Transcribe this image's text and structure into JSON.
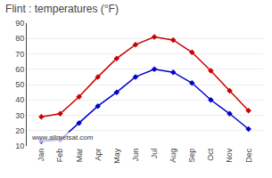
{
  "chart_data": {
    "type": "line",
    "title": "Flint : temperatures (°F)",
    "categories": [
      "Jan",
      "Feb",
      "Mar",
      "Apr",
      "May",
      "Jun",
      "Jul",
      "Aug",
      "Sep",
      "Oct",
      "Nov",
      "Dec"
    ],
    "series": [
      {
        "color": "#cc0000",
        "marker": "diamond",
        "line_style": "solid",
        "values": [
          29,
          31,
          42,
          55,
          67,
          76,
          81,
          79,
          71,
          59,
          46,
          33
        ]
      },
      {
        "color": "#0000cc",
        "marker": "diamond",
        "line_style": "solid",
        "values": [
          13,
          14,
          25,
          36,
          45,
          55,
          60,
          58,
          51,
          40,
          31,
          21
        ]
      }
    ],
    "ylim": [
      10,
      90
    ],
    "yticks": [
      10,
      20,
      30,
      40,
      50,
      60,
      70,
      80,
      90
    ],
    "grid": true,
    "annotations": [
      "www.allmetsat.com"
    ]
  }
}
